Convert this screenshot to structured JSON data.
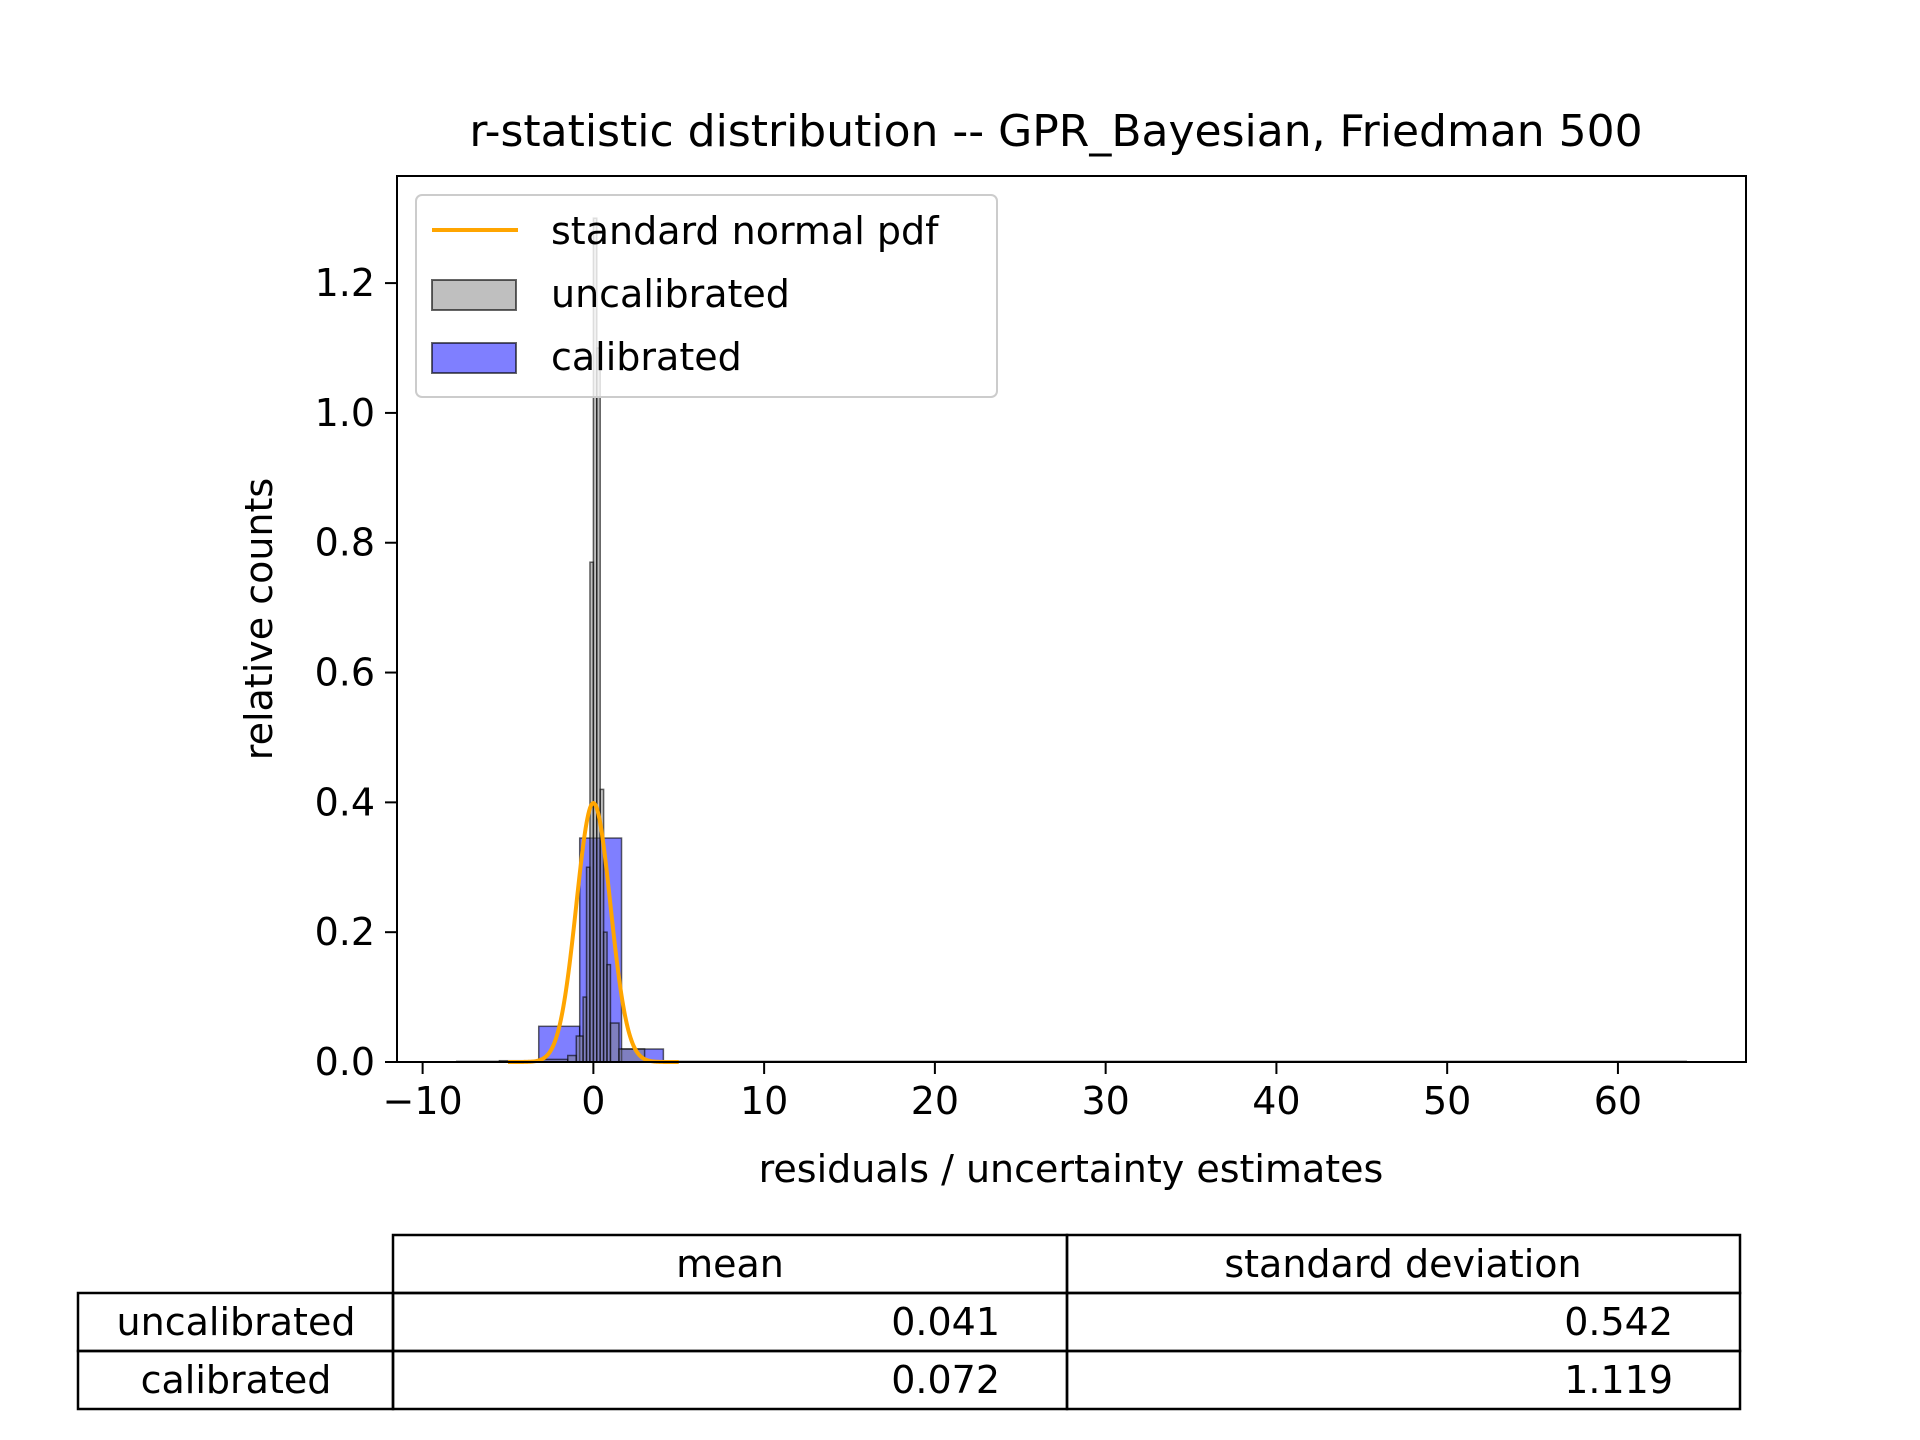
{
  "chart_data": {
    "type": "bar",
    "title": "r-statistic distribution -- GPR_Bayesian, Friedman 500",
    "xlabel": "residuals / uncertainty estimates",
    "ylabel": "relative counts",
    "xlim": [
      -11.5,
      67.5
    ],
    "ylim": [
      0,
      1.365
    ],
    "xticks": [
      -10,
      0,
      10,
      20,
      30,
      40,
      50,
      60
    ],
    "xtick_labels": [
      "−10",
      "0",
      "10",
      "20",
      "30",
      "40",
      "50",
      "60"
    ],
    "yticks": [
      0.0,
      0.2,
      0.4,
      0.6,
      0.8,
      1.0,
      1.2
    ],
    "ytick_labels": [
      "0.0",
      "0.2",
      "0.4",
      "0.6",
      "0.8",
      "1.0",
      "1.2"
    ],
    "legend_position": "top-left",
    "grid": false,
    "series": [
      {
        "name": "standard normal pdf",
        "kind": "line",
        "color": "#ffa500",
        "function": "standard normal pdf",
        "x_range": [
          -5,
          5
        ]
      },
      {
        "name": "uncalibrated",
        "kind": "histogram",
        "color": "#808080",
        "edge_color": "#000000",
        "opacity": 0.5,
        "bins": [
          {
            "x0": -8.0,
            "x1": -5.5,
            "y": 0.001
          },
          {
            "x0": -5.5,
            "x1": -3.0,
            "y": 0.002
          },
          {
            "x0": -3.0,
            "x1": -1.5,
            "y": 0.004
          },
          {
            "x0": -1.5,
            "x1": -1.0,
            "y": 0.01
          },
          {
            "x0": -1.0,
            "x1": -0.6,
            "y": 0.04
          },
          {
            "x0": -0.6,
            "x1": -0.4,
            "y": 0.1
          },
          {
            "x0": -0.4,
            "x1": -0.2,
            "y": 0.3
          },
          {
            "x0": -0.2,
            "x1": 0.0,
            "y": 0.77
          },
          {
            "x0": 0.0,
            "x1": 0.2,
            "y": 1.3
          },
          {
            "x0": 0.2,
            "x1": 0.4,
            "y": 1.1
          },
          {
            "x0": 0.4,
            "x1": 0.6,
            "y": 0.42
          },
          {
            "x0": 0.6,
            "x1": 0.8,
            "y": 0.2
          },
          {
            "x0": 0.8,
            "x1": 1.0,
            "y": 0.15
          },
          {
            "x0": 1.0,
            "x1": 1.5,
            "y": 0.06
          },
          {
            "x0": 1.5,
            "x1": 3.0,
            "y": 0.02
          },
          {
            "x0": 3.0,
            "x1": 64.0,
            "y": 0.001
          }
        ]
      },
      {
        "name": "calibrated",
        "kind": "histogram",
        "color": "#0000ff",
        "edge_color": "#000000",
        "opacity": 0.5,
        "bins": [
          {
            "x0": -3.2,
            "x1": -0.8,
            "y": 0.055
          },
          {
            "x0": -0.8,
            "x1": 1.65,
            "y": 0.345
          },
          {
            "x0": 1.65,
            "x1": 4.1,
            "y": 0.02
          }
        ]
      }
    ],
    "table": {
      "columns": [
        "mean",
        "standard deviation"
      ],
      "rows": [
        {
          "label": "uncalibrated",
          "values": [
            "0.041",
            "0.542"
          ]
        },
        {
          "label": "calibrated",
          "values": [
            "0.072",
            "1.119"
          ]
        }
      ]
    }
  }
}
